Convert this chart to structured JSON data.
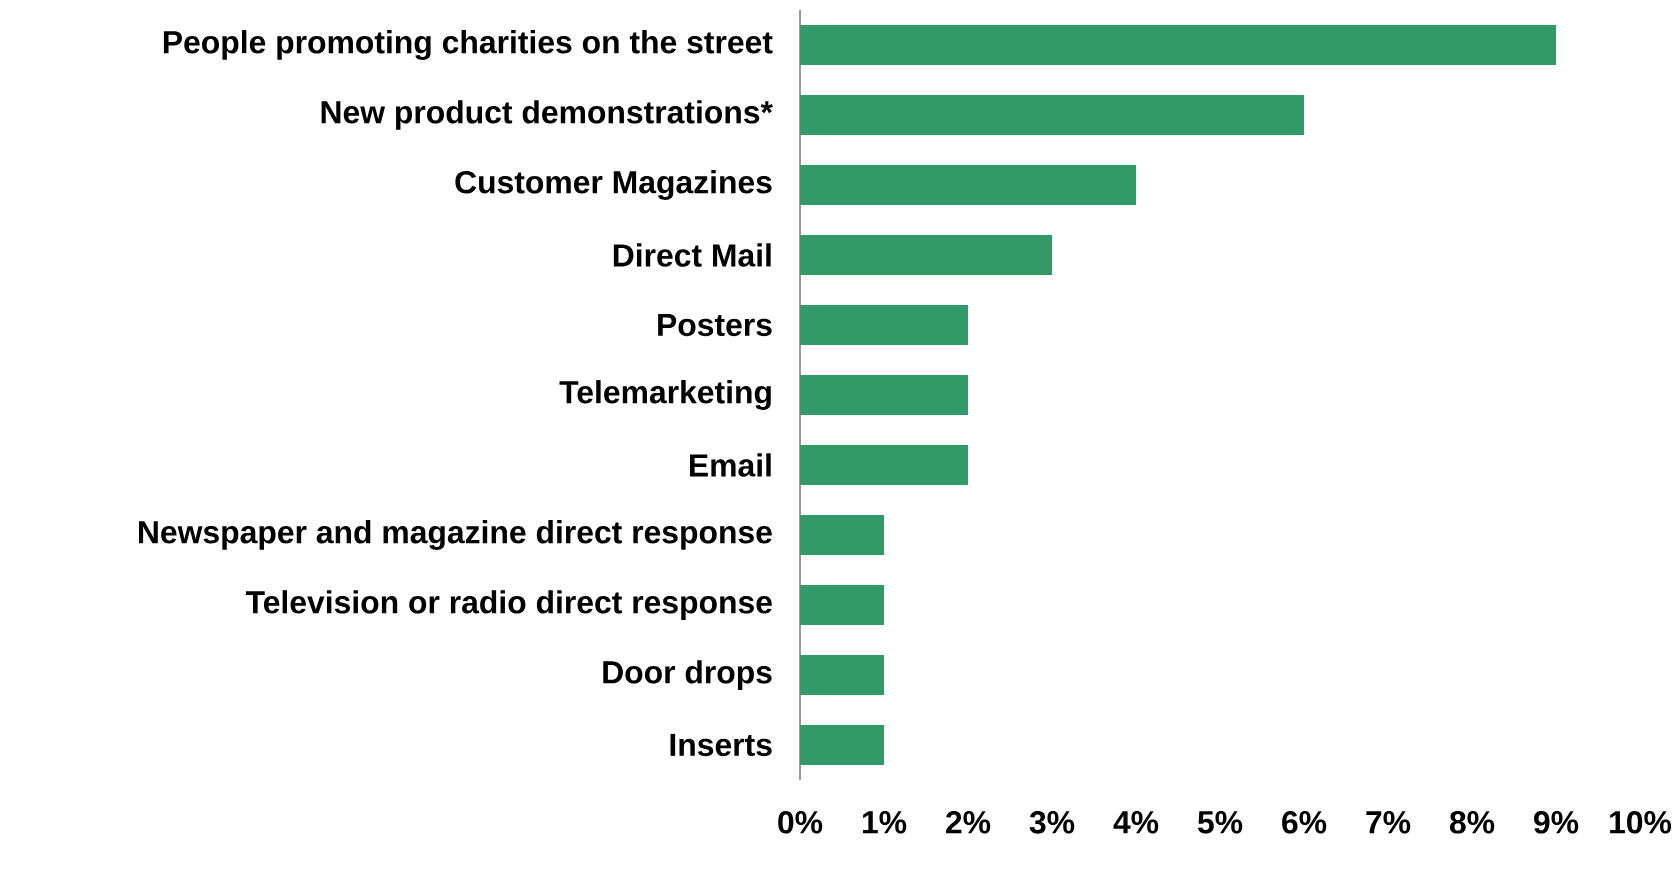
{
  "chart_data": {
    "type": "bar",
    "orientation": "horizontal",
    "categories": [
      "People promoting charities on the street",
      "New product demonstrations*",
      "Customer Magazines",
      "Direct Mail",
      "Posters",
      "Telemarketing",
      "Email",
      "Newspaper and magazine direct response",
      "Television or radio direct response",
      "Door drops",
      "Inserts"
    ],
    "values": [
      9,
      6,
      4,
      3,
      2,
      2,
      2,
      1,
      1,
      1,
      1
    ],
    "color": "#339966",
    "xlim": [
      0,
      10
    ],
    "xticks": [
      {
        "value": 0,
        "label": "0%"
      },
      {
        "value": 1,
        "label": "1%"
      },
      {
        "value": 2,
        "label": "2%"
      },
      {
        "value": 3,
        "label": "3%"
      },
      {
        "value": 4,
        "label": "4%"
      },
      {
        "value": 5,
        "label": "5%"
      },
      {
        "value": 6,
        "label": "6%"
      },
      {
        "value": 7,
        "label": "7%"
      },
      {
        "value": 8,
        "label": "8%"
      },
      {
        "value": 9,
        "label": "9%"
      },
      {
        "value": 10,
        "label": "10%"
      }
    ],
    "grid": false
  }
}
